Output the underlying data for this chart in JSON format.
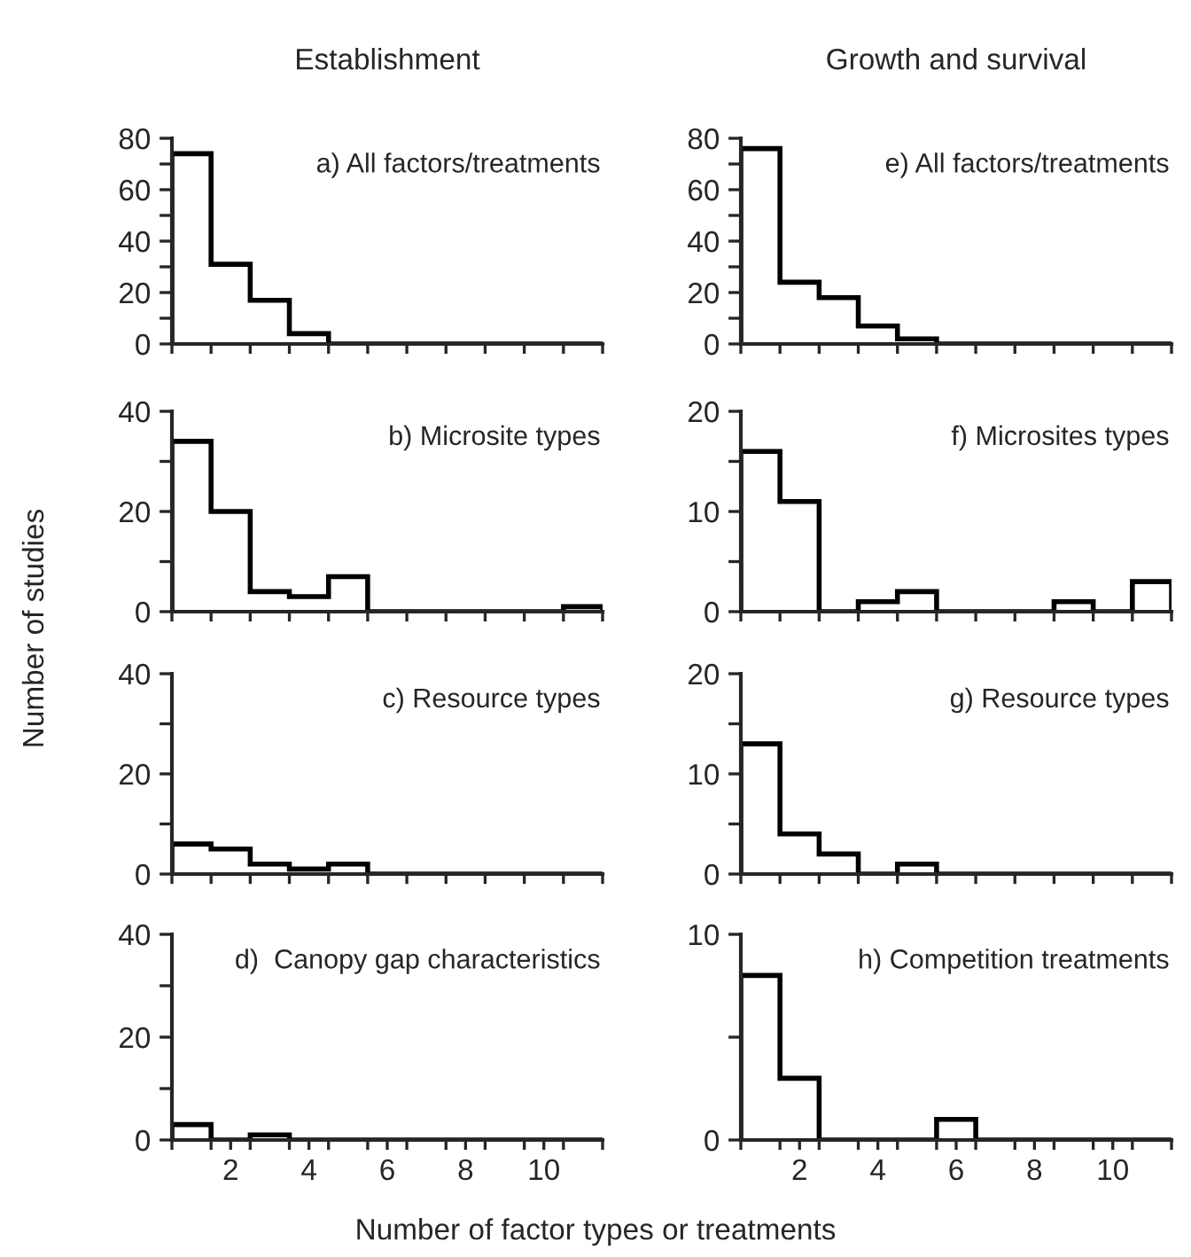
{
  "chart_data": [
    {
      "type": "histogram",
      "title": "Establishment",
      "ylabel": "Number of studies",
      "annotations": [
        "a) All factors/treatments"
      ],
      "bins": [
        0.5,
        1.5,
        2.5,
        3.5,
        4.5,
        5.5,
        6.5,
        7.5,
        8.5,
        9.5,
        10.5,
        11.5
      ],
      "values": [
        74,
        31,
        17,
        4,
        0,
        0,
        0,
        0,
        0,
        0,
        0
      ],
      "color": "#000000",
      "xlim": [
        0.5,
        11.5
      ],
      "ylim": [
        0,
        80
      ],
      "yticks": [
        0,
        {
          "value": 10,
          "label": null
        },
        20,
        {
          "value": 30,
          "label": null
        },
        40,
        {
          "value": 50,
          "label": null
        },
        60,
        {
          "value": 70,
          "label": null
        },
        80
      ],
      "xticks": [
        {
          "value": 0.5,
          "label": null
        },
        {
          "value": 1.5,
          "label": null
        },
        {
          "value": 2.5,
          "label": null
        },
        {
          "value": 3.5,
          "label": null
        },
        {
          "value": 4.5,
          "label": null
        },
        {
          "value": 5.5,
          "label": null
        },
        {
          "value": 6.5,
          "label": null
        },
        {
          "value": 7.5,
          "label": null
        },
        {
          "value": 8.5,
          "label": null
        },
        {
          "value": 9.5,
          "label": null
        },
        {
          "value": 10.5,
          "label": null
        },
        {
          "value": 11.5,
          "label": null
        }
      ],
      "tick_labels": "y"
    },
    {
      "type": "histogram",
      "annotations": [
        "b) Microsite types"
      ],
      "bins": [
        0.5,
        1.5,
        2.5,
        3.5,
        4.5,
        5.5,
        6.5,
        7.5,
        8.5,
        9.5,
        10.5,
        11.5
      ],
      "values": [
        34,
        20,
        4,
        3,
        7,
        0,
        0,
        0,
        0,
        0,
        1
      ],
      "color": "#000000",
      "xlim": [
        0.5,
        11.5
      ],
      "ylim": [
        0,
        40
      ],
      "yticks": [
        0,
        {
          "value": 10,
          "label": null
        },
        20,
        {
          "value": 30,
          "label": null
        },
        40
      ],
      "xticks": [
        {
          "value": 0.5,
          "label": null
        },
        {
          "value": 1.5,
          "label": null
        },
        {
          "value": 2.5,
          "label": null
        },
        {
          "value": 3.5,
          "label": null
        },
        {
          "value": 4.5,
          "label": null
        },
        {
          "value": 5.5,
          "label": null
        },
        {
          "value": 6.5,
          "label": null
        },
        {
          "value": 7.5,
          "label": null
        },
        {
          "value": 8.5,
          "label": null
        },
        {
          "value": 9.5,
          "label": null
        },
        {
          "value": 10.5,
          "label": null
        },
        {
          "value": 11.5,
          "label": null
        }
      ],
      "tick_labels": "y"
    },
    {
      "type": "histogram",
      "annotations": [
        "c) Resource types"
      ],
      "bins": [
        0.5,
        1.5,
        2.5,
        3.5,
        4.5,
        5.5,
        6.5,
        7.5,
        8.5,
        9.5,
        10.5,
        11.5
      ],
      "values": [
        6,
        5,
        2,
        1,
        2,
        0,
        0,
        0,
        0,
        0,
        0
      ],
      "color": "#000000",
      "xlim": [
        0.5,
        11.5
      ],
      "ylim": [
        0,
        40
      ],
      "yticks": [
        0,
        {
          "value": 10,
          "label": null
        },
        20,
        {
          "value": 30,
          "label": null
        },
        40
      ],
      "xticks": [
        {
          "value": 0.5,
          "label": null
        },
        {
          "value": 1.5,
          "label": null
        },
        {
          "value": 2.5,
          "label": null
        },
        {
          "value": 3.5,
          "label": null
        },
        {
          "value": 4.5,
          "label": null
        },
        {
          "value": 5.5,
          "label": null
        },
        {
          "value": 6.5,
          "label": null
        },
        {
          "value": 7.5,
          "label": null
        },
        {
          "value": 8.5,
          "label": null
        },
        {
          "value": 9.5,
          "label": null
        },
        {
          "value": 10.5,
          "label": null
        },
        {
          "value": 11.5,
          "label": null
        }
      ],
      "tick_labels": "y"
    },
    {
      "type": "histogram",
      "xlabel": "Number of factor types or treatments",
      "annotations": [
        "d)  Canopy gap characteristics"
      ],
      "bins": [
        0.5,
        1.5,
        2.5,
        3.5,
        4.5,
        5.5,
        6.5,
        7.5,
        8.5,
        9.5,
        10.5,
        11.5
      ],
      "values": [
        3,
        0,
        1,
        0,
        0,
        0,
        0,
        0,
        0,
        0,
        0
      ],
      "color": "#000000",
      "xlim": [
        0.5,
        11.5
      ],
      "ylim": [
        0,
        40
      ],
      "yticks": [
        0,
        {
          "value": 10,
          "label": null
        },
        20,
        {
          "value": 30,
          "label": null
        },
        40
      ],
      "xticks": [
        {
          "value": 0.5,
          "label": null
        },
        {
          "value": 1.5,
          "label": null
        },
        2,
        {
          "value": 2.5,
          "label": null
        },
        {
          "value": 3.5,
          "label": null
        },
        4,
        {
          "value": 4.5,
          "label": null
        },
        {
          "value": 5.5,
          "label": null
        },
        6,
        {
          "value": 6.5,
          "label": null
        },
        {
          "value": 7.5,
          "label": null
        },
        8,
        {
          "value": 8.5,
          "label": null
        },
        {
          "value": 9.5,
          "label": null
        },
        10,
        {
          "value": 10.5,
          "label": null
        },
        {
          "value": 11.5,
          "label": null
        }
      ]
    },
    {
      "type": "histogram",
      "title": "Growth and survival",
      "annotations": [
        "e) All factors/treatments"
      ],
      "bins": [
        0.5,
        1.5,
        2.5,
        3.5,
        4.5,
        5.5,
        6.5,
        7.5,
        8.5,
        9.5,
        10.5,
        11.5
      ],
      "values": [
        76,
        24,
        18,
        7,
        2,
        0,
        0,
        0,
        0,
        0,
        0
      ],
      "color": "#000000",
      "xlim": [
        0.5,
        11.5
      ],
      "ylim": [
        0,
        80
      ],
      "yticks": [
        0,
        {
          "value": 10,
          "label": null
        },
        20,
        {
          "value": 30,
          "label": null
        },
        40,
        {
          "value": 50,
          "label": null
        },
        60,
        {
          "value": 70,
          "label": null
        },
        80
      ],
      "xticks": [
        {
          "value": 0.5,
          "label": null
        },
        {
          "value": 1.5,
          "label": null
        },
        {
          "value": 2.5,
          "label": null
        },
        {
          "value": 3.5,
          "label": null
        },
        {
          "value": 4.5,
          "label": null
        },
        {
          "value": 5.5,
          "label": null
        },
        {
          "value": 6.5,
          "label": null
        },
        {
          "value": 7.5,
          "label": null
        },
        {
          "value": 8.5,
          "label": null
        },
        {
          "value": 9.5,
          "label": null
        },
        {
          "value": 10.5,
          "label": null
        },
        {
          "value": 11.5,
          "label": null
        }
      ],
      "tick_labels": "y"
    },
    {
      "type": "histogram",
      "annotations": [
        "f) Microsites types"
      ],
      "bins": [
        0.5,
        1.5,
        2.5,
        3.5,
        4.5,
        5.5,
        6.5,
        7.5,
        8.5,
        9.5,
        10.5,
        11.5
      ],
      "values": [
        16,
        11,
        0,
        1,
        2,
        0,
        0,
        0,
        1,
        0,
        3
      ],
      "color": "#000000",
      "xlim": [
        0.5,
        11.5
      ],
      "ylim": [
        0,
        20
      ],
      "yticks": [
        0,
        {
          "value": 5,
          "label": null
        },
        10,
        {
          "value": 15,
          "label": null
        },
        20
      ],
      "xticks": [
        {
          "value": 0.5,
          "label": null
        },
        {
          "value": 1.5,
          "label": null
        },
        {
          "value": 2.5,
          "label": null
        },
        {
          "value": 3.5,
          "label": null
        },
        {
          "value": 4.5,
          "label": null
        },
        {
          "value": 5.5,
          "label": null
        },
        {
          "value": 6.5,
          "label": null
        },
        {
          "value": 7.5,
          "label": null
        },
        {
          "value": 8.5,
          "label": null
        },
        {
          "value": 9.5,
          "label": null
        },
        {
          "value": 10.5,
          "label": null
        },
        {
          "value": 11.5,
          "label": null
        }
      ],
      "tick_labels": "y"
    },
    {
      "type": "histogram",
      "annotations": [
        "g) Resource types"
      ],
      "bins": [
        0.5,
        1.5,
        2.5,
        3.5,
        4.5,
        5.5,
        6.5,
        7.5,
        8.5,
        9.5,
        10.5,
        11.5
      ],
      "values": [
        13,
        4,
        2,
        0,
        1,
        0,
        0,
        0,
        0,
        0,
        0
      ],
      "color": "#000000",
      "xlim": [
        0.5,
        11.5
      ],
      "ylim": [
        0,
        20
      ],
      "yticks": [
        0,
        {
          "value": 5,
          "label": null
        },
        10,
        {
          "value": 15,
          "label": null
        },
        20
      ],
      "xticks": [
        {
          "value": 0.5,
          "label": null
        },
        {
          "value": 1.5,
          "label": null
        },
        {
          "value": 2.5,
          "label": null
        },
        {
          "value": 3.5,
          "label": null
        },
        {
          "value": 4.5,
          "label": null
        },
        {
          "value": 5.5,
          "label": null
        },
        {
          "value": 6.5,
          "label": null
        },
        {
          "value": 7.5,
          "label": null
        },
        {
          "value": 8.5,
          "label": null
        },
        {
          "value": 9.5,
          "label": null
        },
        {
          "value": 10.5,
          "label": null
        },
        {
          "value": 11.5,
          "label": null
        }
      ],
      "tick_labels": "y"
    },
    {
      "type": "histogram",
      "annotations": [
        "h) Competition treatments"
      ],
      "bins": [
        0.5,
        1.5,
        2.5,
        3.5,
        4.5,
        5.5,
        6.5,
        7.5,
        8.5,
        9.5,
        10.5,
        11.5
      ],
      "values": [
        8,
        3,
        0,
        0,
        0,
        1,
        0,
        0,
        0,
        0,
        0
      ],
      "color": "#000000",
      "xlim": [
        0.5,
        11.5
      ],
      "ylim": [
        0,
        10
      ],
      "yticks": [
        0,
        {
          "value": 5,
          "label": null
        },
        10
      ],
      "xticks": [
        {
          "value": 0.5,
          "label": null
        },
        {
          "value": 1.5,
          "label": null
        },
        2,
        {
          "value": 2.5,
          "label": null
        },
        {
          "value": 3.5,
          "label": null
        },
        4,
        {
          "value": 4.5,
          "label": null
        },
        {
          "value": 5.5,
          "label": null
        },
        6,
        {
          "value": 6.5,
          "label": null
        },
        {
          "value": 7.5,
          "label": null
        },
        8,
        {
          "value": 8.5,
          "label": null
        },
        {
          "value": 9.5,
          "label": null
        },
        10,
        {
          "value": 10.5,
          "label": null
        },
        {
          "value": 11.5,
          "label": null
        }
      ]
    }
  ]
}
